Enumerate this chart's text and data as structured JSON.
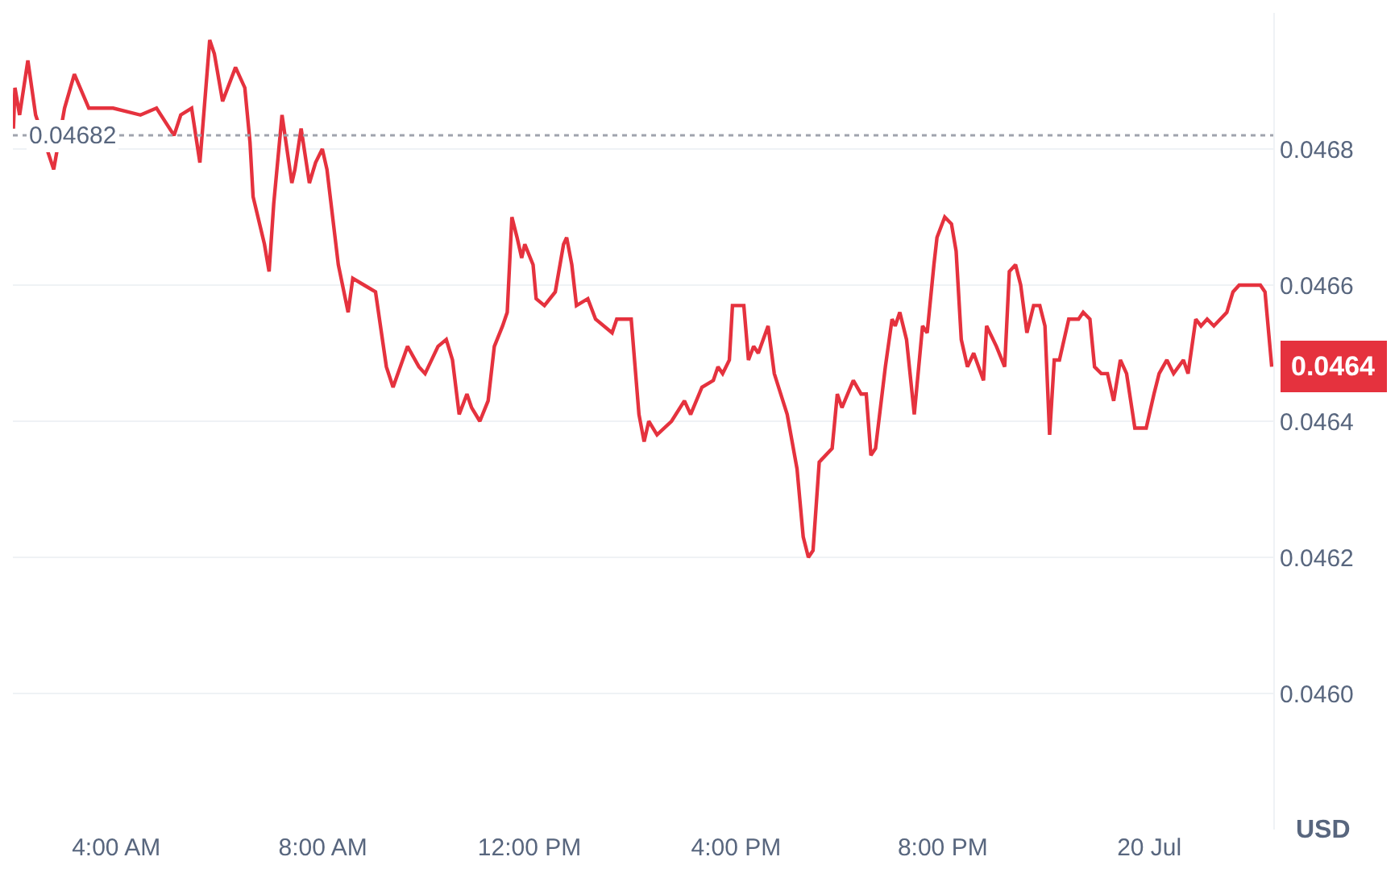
{
  "chart_data": {
    "type": "line",
    "x": [
      2.01,
      2.04,
      2.13,
      2.29,
      2.44,
      2.79,
      3.0,
      3.19,
      3.47,
      3.94,
      4.47,
      4.78,
      5.12,
      5.25,
      5.46,
      5.62,
      5.81,
      5.9,
      6.06,
      6.31,
      6.49,
      6.59,
      6.65,
      6.87,
      6.96,
      7.05,
      7.21,
      7.4,
      7.46,
      7.58,
      7.74,
      7.86,
      7.99,
      8.08,
      8.3,
      8.49,
      8.58,
      8.8,
      9.02,
      9.23,
      9.36,
      9.64,
      9.86,
      9.98,
      10.23,
      10.39,
      10.51,
      10.64,
      10.79,
      10.88,
      11.04,
      11.2,
      11.32,
      11.48,
      11.57,
      11.66,
      11.76,
      11.85,
      11.91,
      12.07,
      12.13,
      12.29,
      12.5,
      12.66,
      12.72,
      12.82,
      12.91,
      13.13,
      13.28,
      13.6,
      13.69,
      13.97,
      14.12,
      14.22,
      14.31,
      14.47,
      14.75,
      15.0,
      15.12,
      15.34,
      15.56,
      15.65,
      15.74,
      15.87,
      15.93,
      16.15,
      16.24,
      16.34,
      16.43,
      16.62,
      16.74,
      16.99,
      17.18,
      17.3,
      17.4,
      17.49,
      17.61,
      17.86,
      17.96,
      18.05,
      18.27,
      18.42,
      18.52,
      18.61,
      18.7,
      18.89,
      19.02,
      19.08,
      19.17,
      19.3,
      19.45,
      19.61,
      19.7,
      19.83,
      19.89,
      20.04,
      20.17,
      20.26,
      20.36,
      20.48,
      20.6,
      20.79,
      20.85,
      21.04,
      21.2,
      21.29,
      21.41,
      21.51,
      21.63,
      21.76,
      21.88,
      21.98,
      22.07,
      22.16,
      22.26,
      22.44,
      22.63,
      22.72,
      22.85,
      22.94,
      23.07,
      23.19,
      23.31,
      23.44,
      23.56,
      23.72,
      23.94,
      24.09,
      24.19,
      24.34,
      24.47,
      24.66,
      24.75,
      24.9,
      25.0,
      25.12,
      25.25,
      25.5,
      25.62,
      25.74,
      25.9,
      26.02,
      26.15,
      26.24,
      26.37
    ],
    "series": [
      {
        "color": "#e5323e",
        "values": [
          0.04683,
          0.04689,
          0.04685,
          0.04693,
          0.04685,
          0.04677,
          0.04686,
          0.04691,
          0.04686,
          0.04686,
          0.04685,
          0.04686,
          0.04682,
          0.04685,
          0.04686,
          0.04678,
          0.04696,
          0.04694,
          0.04687,
          0.04692,
          0.04689,
          0.04681,
          0.04673,
          0.04666,
          0.04662,
          0.04672,
          0.04685,
          0.04675,
          0.04677,
          0.04683,
          0.04675,
          0.04678,
          0.0468,
          0.04677,
          0.04663,
          0.04656,
          0.04661,
          0.0466,
          0.04659,
          0.04648,
          0.04645,
          0.04651,
          0.04648,
          0.04647,
          0.04651,
          0.04652,
          0.04649,
          0.04641,
          0.04644,
          0.04642,
          0.0464,
          0.04643,
          0.04651,
          0.04654,
          0.04656,
          0.0467,
          0.04667,
          0.04664,
          0.04666,
          0.04663,
          0.04658,
          0.04657,
          0.04659,
          0.04666,
          0.04667,
          0.04663,
          0.04657,
          0.04658,
          0.04655,
          0.04653,
          0.04655,
          0.04655,
          0.04641,
          0.04637,
          0.0464,
          0.04638,
          0.0464,
          0.04643,
          0.04641,
          0.04645,
          0.04646,
          0.04648,
          0.04647,
          0.04649,
          0.04657,
          0.04657,
          0.04649,
          0.04651,
          0.0465,
          0.04654,
          0.04647,
          0.04641,
          0.04633,
          0.04623,
          0.0462,
          0.04621,
          0.04634,
          0.04636,
          0.04644,
          0.04642,
          0.04646,
          0.04644,
          0.04644,
          0.04635,
          0.04636,
          0.04648,
          0.04655,
          0.04654,
          0.04656,
          0.04652,
          0.04641,
          0.04654,
          0.04653,
          0.04663,
          0.04667,
          0.0467,
          0.04669,
          0.04665,
          0.04652,
          0.04648,
          0.0465,
          0.04646,
          0.04654,
          0.04651,
          0.04648,
          0.04662,
          0.04663,
          0.0466,
          0.04653,
          0.04657,
          0.04657,
          0.04654,
          0.04638,
          0.04649,
          0.04649,
          0.04655,
          0.04655,
          0.04656,
          0.04655,
          0.04648,
          0.04647,
          0.04647,
          0.04643,
          0.04649,
          0.04647,
          0.04639,
          0.04639,
          0.04644,
          0.04647,
          0.04649,
          0.04647,
          0.04649,
          0.04647,
          0.04655,
          0.04654,
          0.04655,
          0.04654,
          0.04656,
          0.04659,
          0.0466,
          0.0466,
          0.0466,
          0.0466,
          0.04659,
          0.04648
        ]
      }
    ],
    "xlim": [
      2.0,
      26.4
    ],
    "xticks": [
      {
        "value": 4,
        "label": "4:00 AM"
      },
      {
        "value": 8,
        "label": "8:00 AM"
      },
      {
        "value": 12,
        "label": "12:00 PM"
      },
      {
        "value": 16,
        "label": "4:00 PM"
      },
      {
        "value": 20,
        "label": "8:00 PM"
      },
      {
        "value": 24,
        "label": "20 Jul"
      }
    ],
    "ylim": [
      0.0458,
      0.047
    ],
    "yticks": [
      {
        "value": 0.046,
        "label": "0.0460"
      },
      0.0462,
      0.0464,
      0.0466,
      0.0468
    ],
    "ylabel": "USD",
    "ref_lines": [
      {
        "axis": "y",
        "value": 0.04682,
        "label": "0.04682",
        "color": "#a0a4ad",
        "line_style": "dotted"
      }
    ],
    "annotations": [
      "0.0464"
    ],
    "grid": "y"
  }
}
